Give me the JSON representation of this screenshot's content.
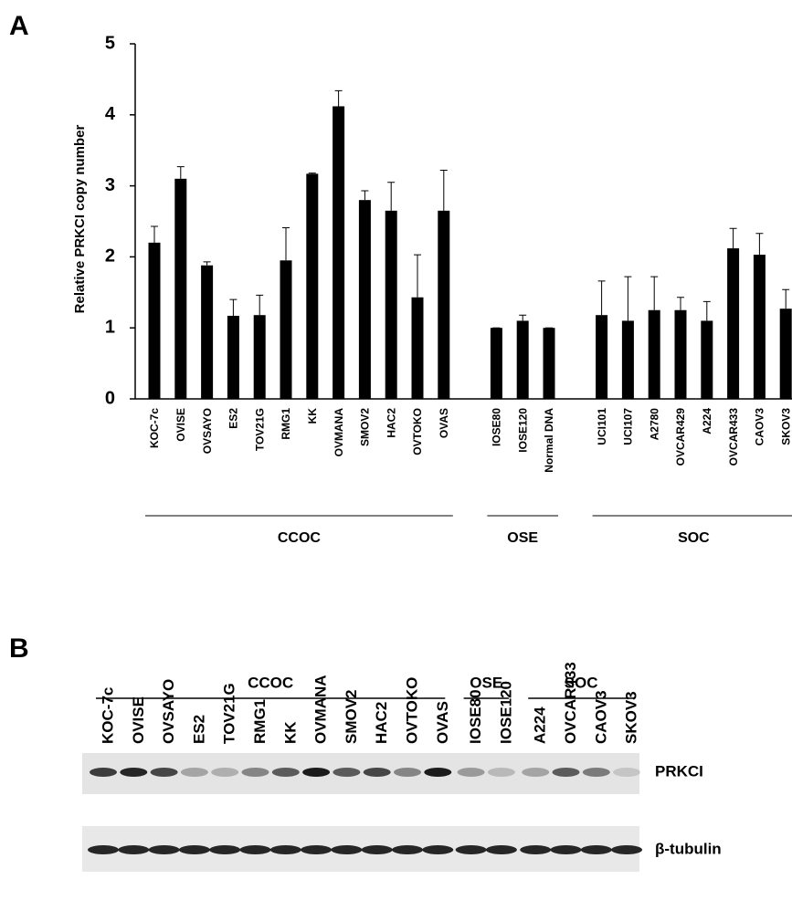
{
  "chart_data": {
    "type": "bar",
    "panel": "A",
    "y_label": "Relative PRKCI copy number",
    "color": "#000000",
    "ylim": [
      0,
      5
    ],
    "yticks": [
      0,
      1,
      2,
      3,
      4,
      5
    ],
    "groups": [
      {
        "label": "CCOC",
        "categories": [
          "KOC-7c",
          "OVISE",
          "OVSAYO",
          "ES2",
          "TOV21G",
          "RMG1",
          "KK",
          "OVMANA",
          "SMOV2",
          "HAC2",
          "OVTOKO",
          "OVAS"
        ],
        "values": [
          2.2,
          3.1,
          1.88,
          1.17,
          1.18,
          1.95,
          3.17,
          4.12,
          2.8,
          2.65,
          1.43,
          2.65
        ],
        "errors": [
          0.23,
          0.17,
          0.05,
          0.23,
          0.28,
          0.46,
          0.01,
          0.22,
          0.13,
          0.4,
          0.6,
          0.57
        ]
      },
      {
        "label": "OSE",
        "categories": [
          "IOSE80",
          "IOSE120",
          "Normal DNA"
        ],
        "values": [
          1.0,
          1.1,
          1.0
        ],
        "errors": [
          0,
          0.08,
          0
        ]
      },
      {
        "label": "SOC",
        "categories": [
          "UCI101",
          "UCI107",
          "A2780",
          "OVCAR429",
          "A224",
          "OVCAR433",
          "CAOV3",
          "SKOV3"
        ],
        "values": [
          1.18,
          1.1,
          1.25,
          1.25,
          1.1,
          2.12,
          2.03,
          1.27
        ],
        "errors": [
          0.48,
          0.62,
          0.47,
          0.18,
          0.27,
          0.28,
          0.3,
          0.27
        ]
      }
    ]
  },
  "blot": {
    "panel": "B",
    "groups": [
      {
        "label": "CCOC",
        "lanes": [
          "KOC-7c",
          "OVISE",
          "OVSAYO",
          "ES2",
          "TOV21G",
          "RMG1",
          "KK",
          "OVMANA",
          "SMOV2",
          "HAC2",
          "OVTOKO",
          "OVAS"
        ]
      },
      {
        "label": "OSE",
        "lanes": [
          "IOSE80",
          "IOSE120"
        ]
      },
      {
        "label": "SOC",
        "lanes": [
          "A224",
          "OVCAR433",
          "CAOV3",
          "SKOV3"
        ]
      }
    ],
    "bands": [
      "PRKCI",
      "β-tubulin"
    ]
  }
}
